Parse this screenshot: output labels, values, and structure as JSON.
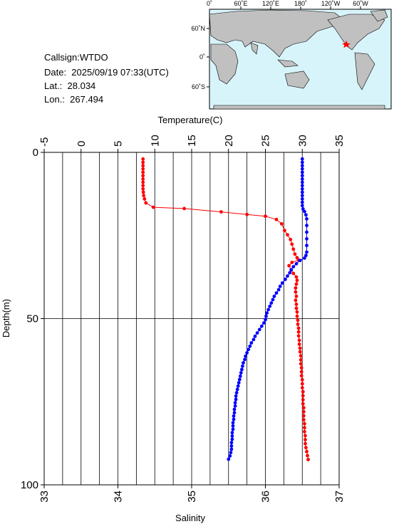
{
  "info": {
    "callsign": "Callsign:WTDO",
    "date": "Date:  2025/09/19 07:33(UTC)",
    "lat": "Lat.:  28.034",
    "lon": "Lon.:  267.494"
  },
  "map": {
    "top_labels": [
      "0˚",
      "60˚E",
      "120˚E",
      "180˚",
      "120˚W",
      "60˚W"
    ],
    "left_labels": [
      "60˚N",
      "0˚",
      "60˚S"
    ],
    "ocean_color": "#d8f4fb",
    "land_color": "#c0c0c0",
    "marker_color": "#ff0000"
  },
  "colors": {
    "temperature": "#ff0000",
    "salinity": "#0000ff"
  },
  "chart_data": {
    "type": "line",
    "ylabel": "Depth(m)",
    "y_ticks": [
      "0",
      "50",
      "100"
    ],
    "ylim": [
      0,
      100
    ],
    "y_inverted": true,
    "top_axis": {
      "label": "Temperature(C)",
      "ticks": [
        "-5",
        "0",
        "5",
        "10",
        "15",
        "20",
        "25",
        "30",
        "35"
      ],
      "xlim": [
        -5,
        35
      ]
    },
    "bottom_axis": {
      "label": "Salinity",
      "ticks": [
        "33",
        "34",
        "35",
        "36",
        "37"
      ],
      "xlim": [
        33,
        37
      ]
    },
    "grid": true,
    "series": [
      {
        "axis": "top",
        "color": "#ff0000",
        "points": [
          [
            8.4,
            2
          ],
          [
            8.4,
            3
          ],
          [
            8.4,
            4
          ],
          [
            8.4,
            5
          ],
          [
            8.4,
            6
          ],
          [
            8.4,
            7
          ],
          [
            8.4,
            8
          ],
          [
            8.4,
            9
          ],
          [
            8.4,
            10
          ],
          [
            8.4,
            11
          ],
          [
            8.45,
            12
          ],
          [
            8.5,
            13
          ],
          [
            8.6,
            14
          ],
          [
            8.8,
            15.2
          ],
          [
            9.8,
            16.5
          ],
          [
            14,
            16.9
          ],
          [
            19,
            17.9
          ],
          [
            22.5,
            18.7
          ],
          [
            25,
            19.2
          ],
          [
            26.5,
            20.2
          ],
          [
            27.2,
            21.5
          ],
          [
            27.6,
            23.5
          ],
          [
            28,
            24.8
          ],
          [
            28.4,
            26.2
          ],
          [
            28.6,
            27.6
          ],
          [
            28.8,
            29.1
          ],
          [
            29,
            30.6
          ],
          [
            29.3,
            31.7
          ],
          [
            29.5,
            32.4
          ],
          [
            28.6,
            33.1
          ],
          [
            28.2,
            34.1
          ],
          [
            28.5,
            35.4
          ],
          [
            28.8,
            36.4
          ],
          [
            29.2,
            37.5
          ],
          [
            29.3,
            38.5
          ],
          [
            29.2,
            39.6
          ],
          [
            29.1,
            40.8
          ],
          [
            29.1,
            42
          ],
          [
            29.2,
            43.3
          ],
          [
            29.1,
            44.5
          ],
          [
            29.2,
            45.7
          ],
          [
            29.2,
            46.9
          ],
          [
            29.3,
            48
          ],
          [
            29.3,
            49.3
          ],
          [
            29.4,
            50.5
          ],
          [
            29.4,
            51.7
          ],
          [
            29.5,
            52.9
          ],
          [
            29.5,
            54
          ],
          [
            29.5,
            55.2
          ],
          [
            29.6,
            56.5
          ],
          [
            29.6,
            57.7
          ],
          [
            29.7,
            58.9
          ],
          [
            29.7,
            60
          ],
          [
            29.8,
            61.2
          ],
          [
            29.8,
            62.4
          ],
          [
            29.8,
            63.6
          ],
          [
            29.9,
            64.8
          ],
          [
            29.9,
            66
          ],
          [
            29.9,
            67.2
          ],
          [
            30,
            68.4
          ],
          [
            30,
            69.6
          ],
          [
            30,
            70.8
          ],
          [
            30.1,
            72
          ],
          [
            30.1,
            73.2
          ],
          [
            30.1,
            74.4
          ],
          [
            30.1,
            75.6
          ],
          [
            30.2,
            76.8
          ],
          [
            30.2,
            78
          ],
          [
            30.2,
            79.2
          ],
          [
            30.2,
            80.4
          ],
          [
            30.3,
            81.6
          ],
          [
            30.3,
            82.8
          ],
          [
            30.3,
            84
          ],
          [
            30.4,
            85.2
          ],
          [
            30.4,
            86.4
          ],
          [
            30.4,
            87.6
          ],
          [
            30.5,
            88.8
          ],
          [
            30.6,
            90
          ],
          [
            30.7,
            91.2
          ],
          [
            30.8,
            92.4
          ]
        ]
      },
      {
        "axis": "bottom",
        "color": "#0000ff",
        "points": [
          [
            36.5,
            2
          ],
          [
            36.5,
            3
          ],
          [
            36.5,
            4
          ],
          [
            36.5,
            5
          ],
          [
            36.5,
            6
          ],
          [
            36.5,
            7
          ],
          [
            36.5,
            8
          ],
          [
            36.5,
            9
          ],
          [
            36.5,
            10
          ],
          [
            36.5,
            11
          ],
          [
            36.5,
            12
          ],
          [
            36.5,
            13
          ],
          [
            36.5,
            14
          ],
          [
            36.5,
            15
          ],
          [
            36.5,
            16
          ],
          [
            36.51,
            17
          ],
          [
            36.53,
            17.8
          ],
          [
            36.55,
            18.8
          ],
          [
            36.56,
            20
          ],
          [
            36.56,
            22
          ],
          [
            36.56,
            24
          ],
          [
            36.56,
            26
          ],
          [
            36.56,
            28
          ],
          [
            36.56,
            30
          ],
          [
            36.55,
            31
          ],
          [
            36.53,
            31.8
          ],
          [
            36.47,
            32.5
          ],
          [
            36.42,
            33.5
          ],
          [
            36.38,
            34.4
          ],
          [
            36.35,
            35.3
          ],
          [
            36.33,
            36.2
          ],
          [
            36.3,
            37.2
          ],
          [
            36.27,
            38.2
          ],
          [
            36.23,
            39.3
          ],
          [
            36.2,
            40.3
          ],
          [
            36.18,
            41.3
          ],
          [
            36.15,
            42.3
          ],
          [
            36.12,
            43.3
          ],
          [
            36.1,
            44.3
          ],
          [
            36.08,
            45.3
          ],
          [
            36.06,
            46.3
          ],
          [
            36.04,
            47.3
          ],
          [
            36.02,
            48.3
          ],
          [
            36.01,
            49.3
          ],
          [
            36,
            50.3
          ],
          [
            35.98,
            51.3
          ],
          [
            35.95,
            52.3
          ],
          [
            35.92,
            53.3
          ],
          [
            35.89,
            54.3
          ],
          [
            35.86,
            55.3
          ],
          [
            35.84,
            56.3
          ],
          [
            35.81,
            57.3
          ],
          [
            35.79,
            58.3
          ],
          [
            35.77,
            59.3
          ],
          [
            35.75,
            60.3
          ],
          [
            35.73,
            61.3
          ],
          [
            35.72,
            62.3
          ],
          [
            35.7,
            63.3
          ],
          [
            35.69,
            64.3
          ],
          [
            35.68,
            65.3
          ],
          [
            35.67,
            66.3
          ],
          [
            35.66,
            67.3
          ],
          [
            35.65,
            68.3
          ],
          [
            35.64,
            69.3
          ],
          [
            35.63,
            70.3
          ],
          [
            35.62,
            71.3
          ],
          [
            35.61,
            72.3
          ],
          [
            35.6,
            73.3
          ],
          [
            35.6,
            74.3
          ],
          [
            35.59,
            75.3
          ],
          [
            35.59,
            76.3
          ],
          [
            35.58,
            77.3
          ],
          [
            35.58,
            78.3
          ],
          [
            35.57,
            79.3
          ],
          [
            35.57,
            80.3
          ],
          [
            35.56,
            81.3
          ],
          [
            35.56,
            82.3
          ],
          [
            35.56,
            83.3
          ],
          [
            35.55,
            84.3
          ],
          [
            35.55,
            85.3
          ],
          [
            35.55,
            86.3
          ],
          [
            35.54,
            87.3
          ],
          [
            35.54,
            88.3
          ],
          [
            35.54,
            89.3
          ],
          [
            35.53,
            90.3
          ],
          [
            35.52,
            91.3
          ],
          [
            35.5,
            92.3
          ]
        ]
      }
    ]
  }
}
